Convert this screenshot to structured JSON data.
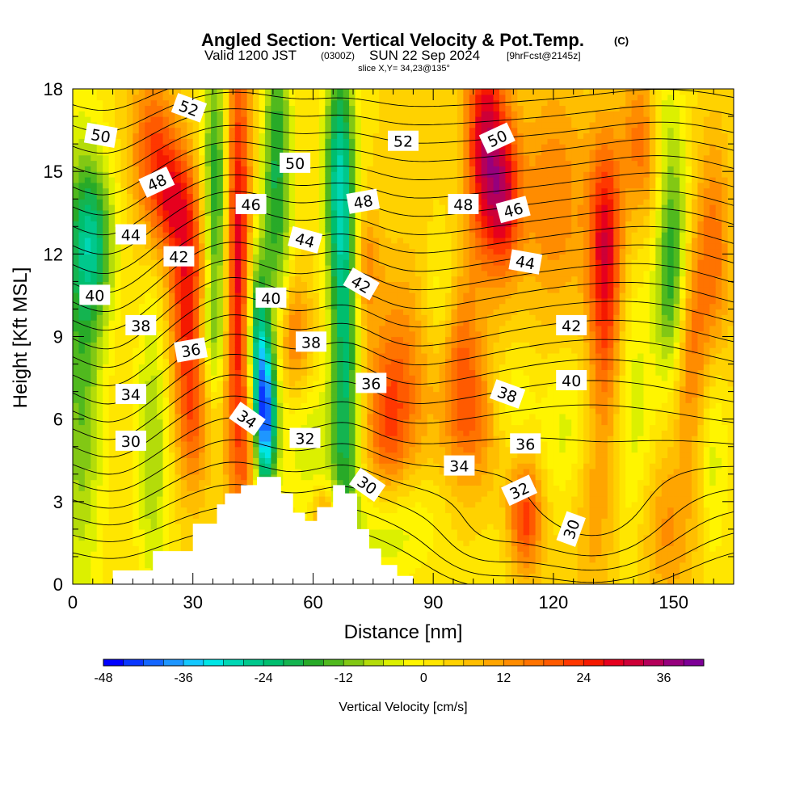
{
  "header": {
    "title": "Angled Section: Vertical Velocity & Pot.Temp.",
    "title_mark": "(C)",
    "valid_a": "Valid 1200 JST",
    "valid_b": "(0300Z)",
    "valid_c": "SUN 22 Sep 2024",
    "valid_d": "[9hrFcst@2145z]",
    "slice": "slice X,Y= 34,23@135°"
  },
  "chart_data": {
    "type": "heatmap",
    "description_kind": "vertical cross-section with filled vertical velocity and potential temperature contour lines",
    "xlabel": "Distance [nm]",
    "ylabel": "Height [Kft MSL]",
    "xlim": [
      0,
      165
    ],
    "ylim": [
      0,
      18
    ],
    "x_ticks": [
      0,
      30,
      60,
      90,
      120,
      150
    ],
    "y_ticks": [
      0,
      3,
      6,
      9,
      12,
      15,
      18
    ],
    "colorbar": {
      "label": "Vertical Velocity [cm/s]",
      "ticks": [
        -48,
        -36,
        -24,
        -12,
        0,
        12,
        24,
        36
      ],
      "levels": [
        -48,
        -45,
        -42,
        -39,
        -36,
        -33,
        -30,
        -27,
        -24,
        -21,
        -18,
        -15,
        -12,
        -9,
        -6,
        -3,
        0,
        3,
        6,
        9,
        12,
        15,
        18,
        21,
        24,
        27,
        30,
        33,
        36,
        39,
        42
      ],
      "colors": [
        "#0000ff",
        "#0a37ff",
        "#1466ff",
        "#1e96ff",
        "#14c8ff",
        "#00e6e6",
        "#00d7b4",
        "#00c88c",
        "#00be6e",
        "#14b450",
        "#28aa28",
        "#50b91e",
        "#82c814",
        "#b4dc0a",
        "#dcf000",
        "#fff500",
        "#ffe600",
        "#ffd200",
        "#ffbe00",
        "#ffa500",
        "#ff8c00",
        "#ff7300",
        "#ff5a00",
        "#ff3700",
        "#f51900",
        "#e6001e",
        "#cd0037",
        "#b4005a",
        "#96007d",
        "#7d0096"
      ]
    },
    "w_field": {
      "background": 3,
      "features": [
        {
          "x": 2,
          "z": 8,
          "sx": 4,
          "sz": 6,
          "w": -16
        },
        {
          "x": 5,
          "z": 12.5,
          "sx": 4,
          "sz": 2,
          "w": -20
        },
        {
          "x": 20,
          "z": 5,
          "sx": 3,
          "sz": 4,
          "w": -12
        },
        {
          "x": 20,
          "z": 16,
          "sx": 4,
          "sz": 2,
          "w": 16
        },
        {
          "x": 25,
          "z": 14,
          "sx": 4,
          "sz": 1.5,
          "w": 18
        },
        {
          "x": 29,
          "z": 10.5,
          "sx": 3.5,
          "sz": 2.5,
          "w": 24
        },
        {
          "x": 30,
          "z": 6,
          "sx": 3,
          "sz": 2,
          "w": 14
        },
        {
          "x": 36,
          "z": 14,
          "sx": 2.5,
          "sz": 4,
          "w": -24
        },
        {
          "x": 34,
          "z": 9,
          "sx": 3,
          "sz": 1.5,
          "w": -10
        },
        {
          "x": 41,
          "z": 12,
          "sx": 2.5,
          "sz": 6,
          "w": 28
        },
        {
          "x": 44,
          "z": 5,
          "sx": 2,
          "sz": 2,
          "w": 12
        },
        {
          "x": 48,
          "z": 6,
          "sx": 2,
          "sz": 2,
          "w": -40
        },
        {
          "x": 46,
          "z": 9,
          "sx": 2,
          "sz": 2.5,
          "w": -24
        },
        {
          "x": 51,
          "z": 15,
          "sx": 2.5,
          "sz": 4,
          "w": -22
        },
        {
          "x": 55,
          "z": 9,
          "sx": 3,
          "sz": 1.5,
          "w": 14
        },
        {
          "x": 60,
          "z": 5,
          "sx": 6,
          "sz": 2,
          "w": -8
        },
        {
          "x": 63,
          "z": 2.5,
          "sx": 2,
          "sz": 0.8,
          "w": 14
        },
        {
          "x": 68,
          "z": 9,
          "sx": 2.5,
          "sz": 6,
          "w": -24
        },
        {
          "x": 66,
          "z": 15,
          "sx": 2.5,
          "sz": 3,
          "w": -20
        },
        {
          "x": 73,
          "z": 11.5,
          "sx": 2.5,
          "sz": 1.5,
          "w": 12
        },
        {
          "x": 78,
          "z": 2,
          "sx": 6,
          "sz": 1.5,
          "w": -8
        },
        {
          "x": 85,
          "z": 2.5,
          "sx": 7,
          "sz": 1.5,
          "w": -4
        },
        {
          "x": 78,
          "z": 5.5,
          "sx": 4,
          "sz": 2,
          "w": 12
        },
        {
          "x": 82,
          "z": 7.5,
          "sx": 5,
          "sz": 3,
          "w": 12
        },
        {
          "x": 92,
          "z": 10.5,
          "sx": 3,
          "sz": 1.5,
          "w": -6
        },
        {
          "x": 99,
          "z": 6,
          "sx": 5,
          "sz": 2,
          "w": 14
        },
        {
          "x": 97,
          "z": 9,
          "sx": 3,
          "sz": 2,
          "w": 10
        },
        {
          "x": 103,
          "z": 16,
          "sx": 3.5,
          "sz": 3,
          "w": 28
        },
        {
          "x": 108,
          "z": 14,
          "sx": 3,
          "sz": 2,
          "w": 20
        },
        {
          "x": 110,
          "z": 6.5,
          "sx": 4,
          "sz": 1.5,
          "w": -6
        },
        {
          "x": 105,
          "z": 1,
          "sx": 4,
          "sz": 1.5,
          "w": -2
        },
        {
          "x": 113,
          "z": 2.5,
          "sx": 3,
          "sz": 1.5,
          "w": 20
        },
        {
          "x": 120,
          "z": 14,
          "sx": 6,
          "sz": 3,
          "w": 12
        },
        {
          "x": 124,
          "z": 5.5,
          "sx": 5,
          "sz": 2,
          "w": -8
        },
        {
          "x": 130,
          "z": 3,
          "sx": 4,
          "sz": 3,
          "w": 8
        },
        {
          "x": 133,
          "z": 13,
          "sx": 3,
          "sz": 2.5,
          "w": 20
        },
        {
          "x": 133,
          "z": 9,
          "sx": 3,
          "sz": 3,
          "w": 14
        },
        {
          "x": 140,
          "z": 6,
          "sx": 4,
          "sz": 4,
          "w": -8
        },
        {
          "x": 142,
          "z": 16,
          "sx": 3.5,
          "sz": 2,
          "w": 14
        },
        {
          "x": 150,
          "z": 12.5,
          "sx": 3,
          "sz": 3,
          "w": -18
        },
        {
          "x": 149,
          "z": 10,
          "sx": 2.5,
          "sz": 2,
          "w": -8
        },
        {
          "x": 147,
          "z": 17,
          "sx": 2.5,
          "sz": 1.5,
          "w": -6
        },
        {
          "x": 154,
          "z": 9,
          "sx": 3,
          "sz": 3,
          "w": 14
        },
        {
          "x": 160,
          "z": 12,
          "sx": 3,
          "sz": 3,
          "w": 14
        },
        {
          "x": 160,
          "z": 5,
          "sx": 2.5,
          "sz": 3,
          "w": -8
        },
        {
          "x": 148,
          "z": 2,
          "sx": 5,
          "sz": 2,
          "w": 10
        }
      ]
    },
    "theta_field": {
      "base": 24,
      "lapse_per_kft": 1.45,
      "contour_interval": 1,
      "contour_min": 26,
      "contour_max": 54,
      "perturbations": [
        {
          "x": 40,
          "z": 10,
          "sx": 12,
          "sz": 6,
          "d": -2.2
        },
        {
          "x": 68,
          "z": 9,
          "sx": 8,
          "sz": 6,
          "d": -1.5
        },
        {
          "x": 8,
          "z": 13,
          "sx": 10,
          "sz": 5,
          "d": 1.5
        },
        {
          "x": 10,
          "z": 5,
          "sx": 8,
          "sz": 4,
          "d": 1.0
        },
        {
          "x": 128,
          "z": 8,
          "sx": 25,
          "sz": 6,
          "d": -1.8
        },
        {
          "x": 130,
          "z": 1.5,
          "sx": 18,
          "sz": 2.2,
          "d": 4.5
        },
        {
          "x": 100,
          "z": 1,
          "sx": 10,
          "sz": 1.5,
          "d": 2.0
        },
        {
          "x": 150,
          "z": 15,
          "sx": 15,
          "sz": 4,
          "d": -1.0
        }
      ]
    },
    "terrain": {
      "x": [
        0,
        10,
        10,
        20,
        20,
        30,
        30,
        36,
        36,
        38,
        38,
        42,
        42,
        46,
        46,
        52,
        52,
        55,
        55,
        58,
        58,
        61,
        61,
        65,
        65,
        68,
        68,
        71,
        71,
        74,
        74,
        77,
        77,
        81,
        81,
        85,
        85,
        165
      ],
      "z": [
        0,
        0,
        0.5,
        0.5,
        1.2,
        1.2,
        2.2,
        2.2,
        2.9,
        2.9,
        3.3,
        3.3,
        3.6,
        3.6,
        3.9,
        3.9,
        3.3,
        3.3,
        2.6,
        2.6,
        2.3,
        2.3,
        2.8,
        2.8,
        3.6,
        3.6,
        3.3,
        3.3,
        2.0,
        2.0,
        1.3,
        1.3,
        0.7,
        0.7,
        0.3,
        0.3,
        0,
        0
      ]
    },
    "contour_labels": [
      {
        "text": "52",
        "x": 29,
        "z": 17.3,
        "rot": 20
      },
      {
        "text": "50",
        "x": 7,
        "z": 16.3,
        "rot": 10
      },
      {
        "text": "48",
        "x": 21,
        "z": 14.6,
        "rot": -25
      },
      {
        "text": "44",
        "x": 14.5,
        "z": 12.7,
        "rot": 0
      },
      {
        "text": "42",
        "x": 26.5,
        "z": 11.9,
        "rot": 0
      },
      {
        "text": "40",
        "x": 5.5,
        "z": 10.5,
        "rot": 0
      },
      {
        "text": "38",
        "x": 17,
        "z": 9.4,
        "rot": 0
      },
      {
        "text": "36",
        "x": 29.5,
        "z": 8.5,
        "rot": -10
      },
      {
        "text": "34",
        "x": 14.5,
        "z": 6.9,
        "rot": 0
      },
      {
        "text": "30",
        "x": 14.5,
        "z": 5.2,
        "rot": 0
      },
      {
        "text": "46",
        "x": 44.5,
        "z": 13.8,
        "rot": 0
      },
      {
        "text": "50",
        "x": 55.5,
        "z": 15.3,
        "rot": 0
      },
      {
        "text": "44",
        "x": 58,
        "z": 12.5,
        "rot": 15
      },
      {
        "text": "40",
        "x": 49.5,
        "z": 10.4,
        "rot": 0
      },
      {
        "text": "38",
        "x": 59.5,
        "z": 8.8,
        "rot": 0
      },
      {
        "text": "34",
        "x": 43.5,
        "z": 6.0,
        "rot": 35
      },
      {
        "text": "32",
        "x": 58,
        "z": 5.3,
        "rot": 0
      },
      {
        "text": "52",
        "x": 82.5,
        "z": 16.1,
        "rot": 0
      },
      {
        "text": "48",
        "x": 72.5,
        "z": 13.9,
        "rot": -10
      },
      {
        "text": "42",
        "x": 72,
        "z": 10.9,
        "rot": 30
      },
      {
        "text": "36",
        "x": 74.5,
        "z": 7.3,
        "rot": 0
      },
      {
        "text": "30",
        "x": 73.5,
        "z": 3.6,
        "rot": 35
      },
      {
        "text": "48",
        "x": 97.5,
        "z": 13.8,
        "rot": 0
      },
      {
        "text": "50",
        "x": 106,
        "z": 16.2,
        "rot": -25
      },
      {
        "text": "46",
        "x": 110,
        "z": 13.6,
        "rot": -15
      },
      {
        "text": "44",
        "x": 113,
        "z": 11.7,
        "rot": 10
      },
      {
        "text": "42",
        "x": 124.5,
        "z": 9.4,
        "rot": 0
      },
      {
        "text": "40",
        "x": 124.5,
        "z": 7.4,
        "rot": 0
      },
      {
        "text": "38",
        "x": 108.5,
        "z": 6.9,
        "rot": 20
      },
      {
        "text": "36",
        "x": 113,
        "z": 5.1,
        "rot": 0
      },
      {
        "text": "34",
        "x": 96.5,
        "z": 4.3,
        "rot": 0
      },
      {
        "text": "32",
        "x": 111.5,
        "z": 3.4,
        "rot": -25
      },
      {
        "text": "30",
        "x": 124.5,
        "z": 2.0,
        "rot": -70
      }
    ]
  }
}
